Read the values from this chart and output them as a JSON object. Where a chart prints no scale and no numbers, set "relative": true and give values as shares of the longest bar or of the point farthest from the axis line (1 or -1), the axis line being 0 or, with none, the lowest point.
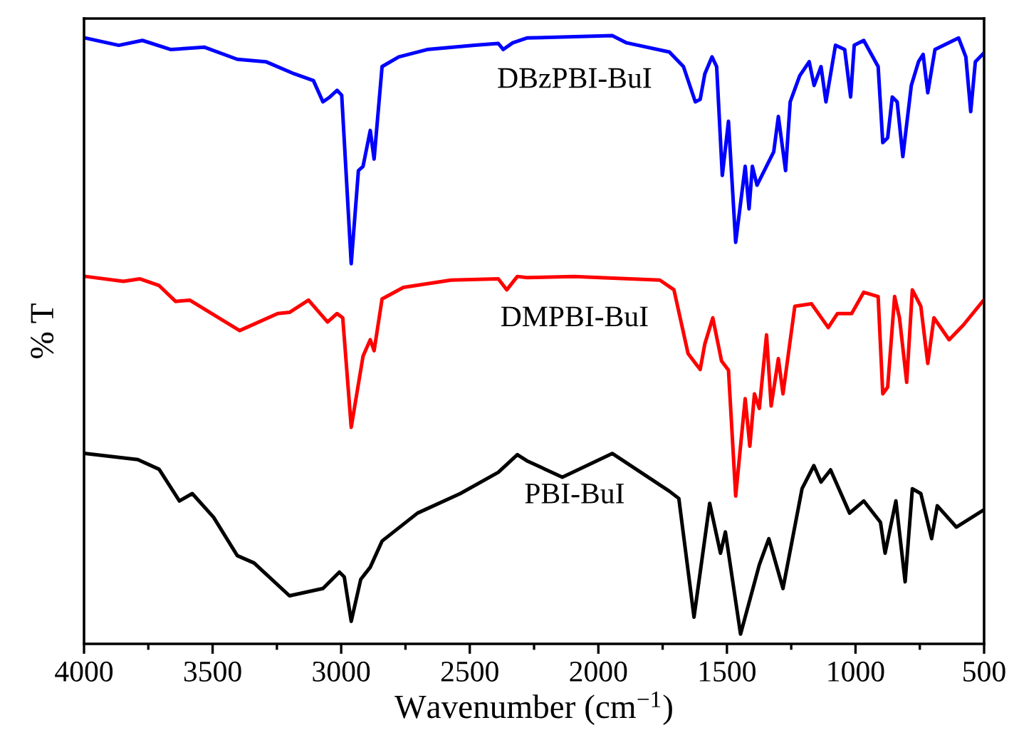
{
  "chart_data": {
    "type": "line",
    "relative": true,
    "xlabel": "Wavenumber (cm$^{−1}$)",
    "ylabel": "% T",
    "tick_labels": "x",
    "grid": false,
    "legend": false,
    "marker": "none",
    "line_style": "solid",
    "xlim": [
      4000,
      500
    ],
    "xticks": [
      4000,
      {
        "value": 3750,
        "label": null
      },
      3500,
      {
        "value": 3250,
        "label": null
      },
      3000,
      {
        "value": 2750,
        "label": null
      },
      2500,
      {
        "value": 2250,
        "label": null
      },
      2000,
      {
        "value": 1750,
        "label": null
      },
      1500,
      {
        "value": 1250,
        "label": null
      },
      1000,
      {
        "value": 750,
        "label": null
      },
      500
    ],
    "series": [
      {
        "name": "DBzPBI-BuI",
        "color": "#0000ff",
        "x": [
          3994,
          3865,
          3773,
          3662,
          3533,
          3404,
          3293,
          3182,
          3108,
          3071,
          3044,
          3016,
          2998,
          2961,
          2933,
          2915,
          2887,
          2872,
          2841,
          2776,
          2666,
          2481,
          2389,
          2370,
          2333,
          2278,
          1946,
          1890,
          1724,
          1669,
          1623,
          1604,
          1586,
          1558,
          1540,
          1518,
          1494,
          1466,
          1429,
          1414,
          1401,
          1383,
          1318,
          1300,
          1272,
          1254,
          1217,
          1180,
          1161,
          1134,
          1115,
          1078,
          1042,
          1019,
          1005,
          968,
          912,
          894,
          875,
          857,
          838,
          816,
          783,
          755,
          737,
          719,
          691,
          599,
          571,
          552,
          534,
          506
        ],
        "values": [
          0.996,
          0.984,
          0.992,
          0.977,
          0.981,
          0.961,
          0.957,
          0.937,
          0.926,
          0.891,
          0.899,
          0.91,
          0.902,
          0.625,
          0.778,
          0.785,
          0.844,
          0.797,
          0.949,
          0.965,
          0.977,
          0.984,
          0.987,
          0.977,
          0.988,
          0.996,
          1.0,
          0.988,
          0.973,
          0.949,
          0.891,
          0.895,
          0.937,
          0.965,
          0.949,
          0.77,
          0.859,
          0.66,
          0.785,
          0.715,
          0.785,
          0.754,
          0.809,
          0.867,
          0.778,
          0.891,
          0.934,
          0.957,
          0.918,
          0.949,
          0.891,
          0.984,
          0.977,
          0.899,
          0.984,
          0.992,
          0.949,
          0.824,
          0.832,
          0.899,
          0.891,
          0.801,
          0.918,
          0.957,
          0.969,
          0.906,
          0.977,
          0.996,
          0.965,
          0.875,
          0.957,
          0.969
        ]
      },
      {
        "name": "DMPBI-BuI",
        "color": "#ff0000",
        "x": [
          3994,
          3847,
          3782,
          3708,
          3644,
          3589,
          3395,
          3247,
          3201,
          3127,
          3053,
          3016,
          2994,
          2961,
          2915,
          2887,
          2872,
          2841,
          2758,
          2573,
          2389,
          2356,
          2315,
          2278,
          2094,
          1761,
          1706,
          1651,
          1604,
          1586,
          1555,
          1521,
          1494,
          1466,
          1429,
          1411,
          1393,
          1374,
          1346,
          1328,
          1300,
          1282,
          1236,
          1171,
          1106,
          1070,
          1015,
          968,
          912,
          894,
          875,
          848,
          829,
          801,
          779,
          746,
          719,
          695,
          636,
          581,
          506
        ],
        "values": [
          0.604,
          0.596,
          0.6,
          0.589,
          0.563,
          0.565,
          0.515,
          0.543,
          0.545,
          0.565,
          0.529,
          0.543,
          0.536,
          0.356,
          0.473,
          0.5,
          0.482,
          0.567,
          0.586,
          0.598,
          0.6,
          0.582,
          0.604,
          0.602,
          0.604,
          0.598,
          0.582,
          0.477,
          0.451,
          0.493,
          0.536,
          0.465,
          0.45,
          0.243,
          0.403,
          0.325,
          0.411,
          0.387,
          0.508,
          0.391,
          0.469,
          0.411,
          0.555,
          0.559,
          0.52,
          0.543,
          0.543,
          0.578,
          0.571,
          0.411,
          0.422,
          0.571,
          0.536,
          0.43,
          0.582,
          0.555,
          0.461,
          0.536,
          0.5,
          0.524,
          0.563
        ]
      },
      {
        "name": "PBI-BuI",
        "color": "#000000",
        "x": [
          3994,
          3791,
          3708,
          3629,
          3579,
          3496,
          3404,
          3339,
          3201,
          3071,
          3007,
          2988,
          2961,
          2924,
          2887,
          2841,
          2703,
          2537,
          2389,
          2315,
          2278,
          2140,
          1946,
          1724,
          1687,
          1628,
          1567,
          1525,
          1506,
          1447,
          1374,
          1337,
          1282,
          1208,
          1162,
          1134,
          1097,
          1023,
          968,
          903,
          885,
          843,
          807,
          779,
          746,
          704,
          682,
          608,
          506
        ],
        "values": [
          0.313,
          0.303,
          0.287,
          0.235,
          0.247,
          0.208,
          0.145,
          0.133,
          0.079,
          0.091,
          0.118,
          0.11,
          0.037,
          0.106,
          0.126,
          0.169,
          0.215,
          0.247,
          0.282,
          0.311,
          0.301,
          0.274,
          0.313,
          0.251,
          0.239,
          0.044,
          0.231,
          0.149,
          0.184,
          0.016,
          0.13,
          0.173,
          0.091,
          0.255,
          0.293,
          0.266,
          0.286,
          0.215,
          0.235,
          0.2,
          0.149,
          0.235,
          0.102,
          0.255,
          0.247,
          0.173,
          0.227,
          0.192,
          0.219
        ]
      }
    ]
  }
}
